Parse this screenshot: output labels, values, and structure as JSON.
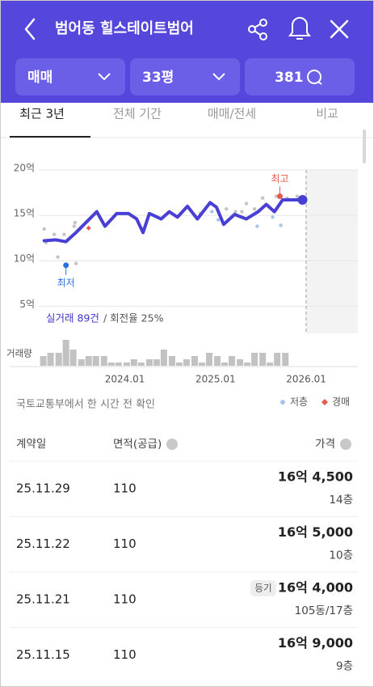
{
  "header": {
    "title": "범어동 힐스테이트범어"
  },
  "filters": [
    "매매",
    "33평",
    "381"
  ],
  "tabs": [
    "최근 3년",
    "전체 기간",
    "매매/전세",
    "비교"
  ],
  "chart_data": {
    "type": "line",
    "ylim": [
      2,
      20
    ],
    "yticks": [
      {
        "value": 20,
        "label": "20억"
      },
      {
        "value": 15,
        "label": "15억"
      },
      {
        "value": 10,
        "label": "10억"
      },
      {
        "value": 5,
        "label": "5억"
      }
    ],
    "xlim": [
      2023.05,
      2026.57
    ],
    "xticks": [
      {
        "value": 2024,
        "label": "2024.01"
      },
      {
        "value": 2025,
        "label": "2025.01"
      },
      {
        "value": 2026,
        "label": "2026.01"
      }
    ],
    "grid": true,
    "series": [
      {
        "color": "#4a3fd4",
        "x": [
          2023.11,
          2023.24,
          2023.35,
          2023.46,
          2023.6,
          2023.69,
          2023.78,
          2023.91,
          2024.04,
          2024.13,
          2024.2,
          2024.27,
          2024.4,
          2024.49,
          2024.58,
          2024.69,
          2024.8,
          2024.94,
          2025.01,
          2025.09,
          2025.21,
          2025.34,
          2025.47,
          2025.56,
          2025.65,
          2025.74,
          2025.96
        ],
        "values": [
          12.2,
          12.3,
          12.1,
          13.1,
          14.5,
          15.4,
          13.8,
          15.2,
          15.2,
          14.6,
          13.1,
          15.2,
          14.6,
          15.4,
          14.8,
          16.0,
          14.6,
          16.4,
          15.9,
          14.0,
          15.1,
          14.6,
          15.4,
          16.2,
          15.4,
          16.7,
          16.7
        ]
      }
    ],
    "points": [
      {
        "color": "#c4c4c4",
        "marker": "circle",
        "x": [
          2023.11,
          2023.13,
          2023.22,
          2023.26,
          2023.33,
          2023.44,
          2023.46,
          2023.45,
          2023.69,
          2024.83,
          2025.12,
          2025.22,
          2025.29,
          2025.34,
          2025.43,
          2025.52,
          2025.67,
          2025.79,
          2025.9
        ],
        "values": [
          13.5,
          12.0,
          12.9,
          10.4,
          12.9,
          13.8,
          9.7,
          14.2,
          15.4,
          15.2,
          15.7,
          15.4,
          15.4,
          16.3,
          15.7,
          16.9,
          17.1,
          16.9,
          17.1
        ]
      },
      {
        "name": "저층",
        "color": "#a9c4ee",
        "marker": "circle",
        "x": [
          2025.03,
          2025.46,
          2025.72,
          2025.63,
          2024.96
        ],
        "values": [
          14.5,
          13.8,
          13.9,
          14.8,
          15.4
        ]
      },
      {
        "name": "경매",
        "color": "#e8584c",
        "marker": "diamond",
        "x": [
          2023.6
        ],
        "values": [
          13.6
        ]
      }
    ],
    "annotations": [
      {
        "label": "최고",
        "x": 2025.71,
        "y": 17.1,
        "color": "#e8584c"
      },
      {
        "label": "최저",
        "x": 2023.35,
        "y": 9.5,
        "color": "#2a6fe0"
      }
    ],
    "caption": {
      "count": "실거래 89건",
      "rate": "/ 회전율 25%"
    },
    "volume": {
      "label": "거래량",
      "x": [
        2023.1,
        2023.18,
        2023.27,
        2023.35,
        2023.43,
        2023.52,
        2023.6,
        2023.68,
        2023.77,
        2023.85,
        2023.93,
        2024.02,
        2024.1,
        2024.18,
        2024.27,
        2024.35,
        2024.43,
        2024.52,
        2024.6,
        2024.68,
        2024.77,
        2024.85,
        2024.93,
        2025.02,
        2025.1,
        2025.18,
        2025.27,
        2025.35,
        2025.43,
        2025.52,
        2025.6,
        2025.68,
        2025.77
      ],
      "values": [
        3,
        4,
        4,
        8,
        5,
        2,
        3,
        3,
        3,
        1,
        1,
        1,
        2,
        1,
        2,
        2,
        5,
        3,
        1,
        2,
        3,
        1,
        4,
        3,
        1,
        3,
        2,
        1,
        4,
        4,
        1,
        4,
        4
      ]
    }
  },
  "note": "국토교통부에서 한 시간 전 확인",
  "table": {
    "columns": [
      "계약일",
      "면적(공급)",
      "가격"
    ],
    "rows": [
      {
        "date": "25.11.29",
        "area": "110",
        "price": "16억 4,500",
        "floor": "14층"
      },
      {
        "date": "25.11.22",
        "area": "110",
        "price": "16억 5,000",
        "floor": "10층"
      },
      {
        "date": "25.11.21",
        "area": "110",
        "tag": "등기",
        "price": "16억 4,000",
        "floor": "105동/17층"
      },
      {
        "date": "25.11.15",
        "area": "110",
        "price": "16억 9,000",
        "floor": "9층"
      }
    ]
  }
}
